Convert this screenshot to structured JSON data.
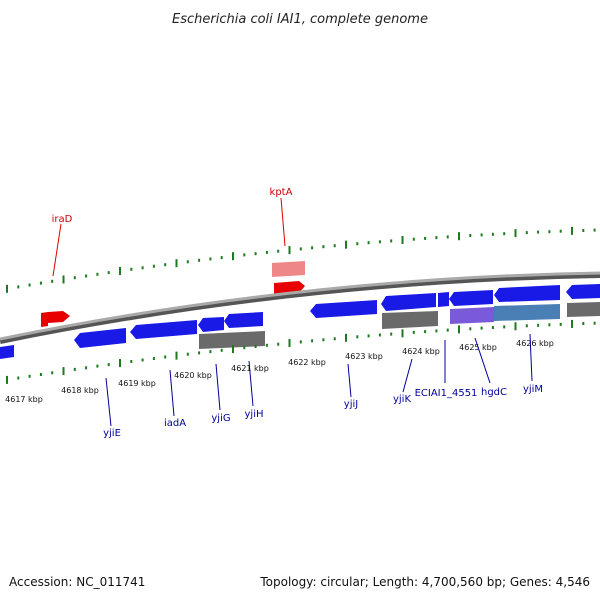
{
  "title": "Escherichia coli IAI1, complete genome",
  "footer": {
    "accession": "Accession: NC_011741",
    "summary": "Topology: circular; Length: 4,700,560 bp; Genes: 4,546"
  },
  "colors": {
    "backbone": "#8c8c8c",
    "tick_green": "#1e7a1e",
    "gene_forward": "#e00000",
    "gene_reverse": "#1010e0",
    "label_forward": "#cc0000",
    "label_reverse": "#000099",
    "cds_gray": "#666666"
  },
  "ticks": {
    "labels": [
      "4617 kbp",
      "4618 kbp",
      "4619 kbp",
      "4620 kbp",
      "4621 kbp",
      "4622 kbp",
      "4623 kbp",
      "4624 kbp",
      "4625 kbp",
      "4626 kbp"
    ]
  },
  "genes": {
    "forward": [
      {
        "id": "iraD",
        "label": "iraD"
      },
      {
        "id": "kptA",
        "label": "kptA"
      }
    ],
    "reverse": [
      {
        "id": "yjiE",
        "label": "yjiE"
      },
      {
        "id": "iadA",
        "label": "iadA"
      },
      {
        "id": "yjiG",
        "label": "yjiG"
      },
      {
        "id": "yjiH",
        "label": "yjiH"
      },
      {
        "id": "yjiJ",
        "label": "yjiJ"
      },
      {
        "id": "yjiK",
        "label": "yjiK"
      },
      {
        "id": "ECIAI1_4551",
        "label": "ECIAI1_4551"
      },
      {
        "id": "hgdC",
        "label": "hgdC"
      },
      {
        "id": "yjiM",
        "label": "yjiM"
      }
    ]
  }
}
